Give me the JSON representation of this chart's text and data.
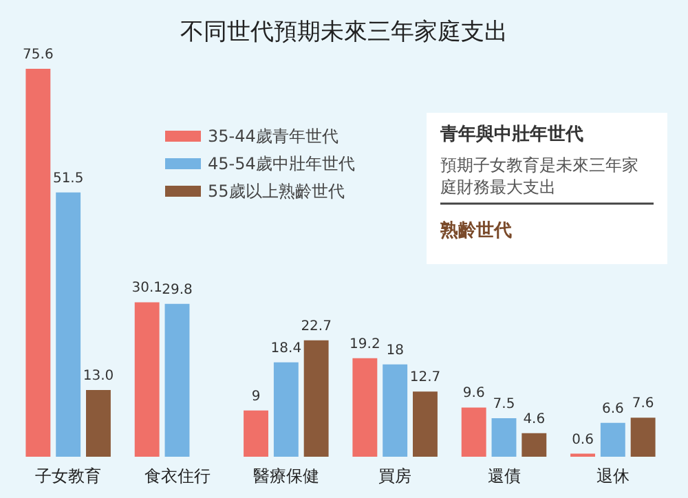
{
  "chart_data": {
    "type": "bar",
    "title": "不同世代預期未來三年家庭支出",
    "categories": [
      "子女教育",
      "食衣住行",
      "醫療保健",
      "買房",
      "還債",
      "退休"
    ],
    "series": [
      {
        "name": "35-44歲青年世代",
        "color": "#f07068",
        "values": [
          75.6,
          30.1,
          9,
          19.2,
          9.6,
          0.6
        ],
        "value_labels": [
          "75.6",
          "30.1",
          "9",
          "19.2",
          "9.6",
          "0.6"
        ]
      },
      {
        "name": "45-54歲中壯年世代",
        "color": "#74b3e3",
        "values": [
          51.5,
          29.8,
          18.4,
          18,
          7.5,
          6.6
        ],
        "value_labels": [
          "51.5",
          "29.8",
          "18.4",
          "18",
          "7.5",
          "6.6"
        ]
      },
      {
        "name": "55歲以上熟齡世代",
        "color": "#8b5a3a",
        "values": [
          13.0,
          null,
          22.7,
          12.7,
          4.6,
          7.6
        ],
        "value_labels": [
          "13.0",
          null,
          "22.7",
          "12.7",
          "4.6",
          "7.6"
        ]
      }
    ],
    "annotations": [
      "青年與中壯年世代",
      "預期子女教育是未來三年家庭財務最大支出",
      "熟齡世代"
    ],
    "legend": "top"
  }
}
